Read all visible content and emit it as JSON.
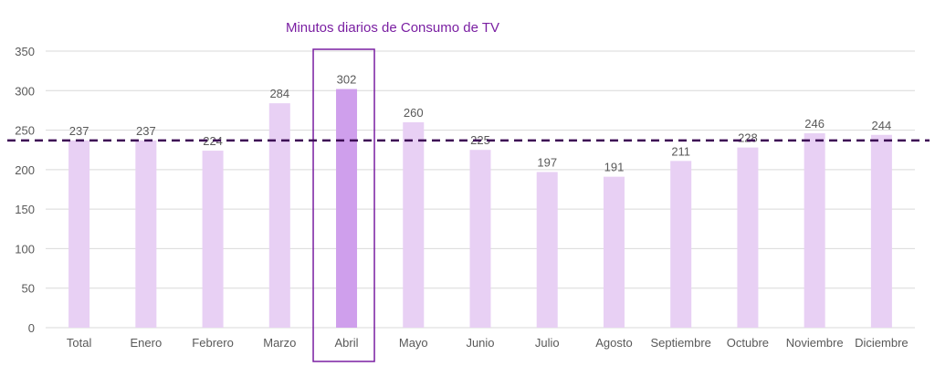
{
  "colors": {
    "bar": "#e8d0f4",
    "highlight_bar": "#cf9fec",
    "highlight_box": "#7a1fa2",
    "average_line": "#3d0a55",
    "title": "#7a1fa2",
    "axis_text": "#595959",
    "grid": "#d9d9d9"
  },
  "chart_data": {
    "type": "bar",
    "title": "Minutos diarios de Consumo de TV",
    "xlabel": "",
    "ylabel": "",
    "categories": [
      "Total",
      "Enero",
      "Febrero",
      "Marzo",
      "Abril",
      "Mayo",
      "Junio",
      "Julio",
      "Agosto",
      "Septiembre",
      "Octubre",
      "Noviembre",
      "Diciembre"
    ],
    "values": [
      237,
      237,
      224,
      284,
      302,
      260,
      225,
      197,
      191,
      211,
      228,
      246,
      244
    ],
    "highlight_category": "Abril",
    "reference_line": 237,
    "ylim": [
      0,
      350
    ],
    "yticks": [
      0,
      50,
      100,
      150,
      200,
      250,
      300,
      350
    ],
    "grid": true,
    "legend": "none"
  }
}
